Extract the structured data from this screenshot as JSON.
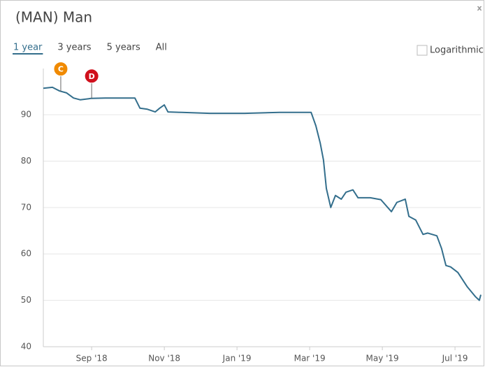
{
  "chart_data": {
    "type": "line",
    "title": "(MAN) Man",
    "close": "x",
    "ranges": [
      "1 year",
      "3 years",
      "5 years",
      "All"
    ],
    "selected_range": 0,
    "log_label": "Logarithmic",
    "log_scale": false,
    "grid": true,
    "color": "#336e8c",
    "xlim": [
      7.67,
      19.71
    ],
    "xticks": [
      {
        "value": 9,
        "label": "Sep '18"
      },
      {
        "value": 11,
        "label": "Nov '18"
      },
      {
        "value": 13,
        "label": "Jan '19"
      },
      {
        "value": 15,
        "label": "Mar '19"
      },
      {
        "value": 17,
        "label": "May '19"
      },
      {
        "value": 19,
        "label": "Jul '19"
      }
    ],
    "ylim": [
      40,
      99.2
    ],
    "yticks": [
      40,
      50,
      60,
      70,
      80,
      90
    ],
    "x": [
      7.67,
      7.92,
      8.12,
      8.31,
      8.5,
      8.69,
      8.98,
      9.37,
      9.75,
      10.19,
      10.33,
      10.52,
      10.75,
      10.87,
      11.0,
      11.1,
      11.48,
      12.25,
      13.21,
      14.17,
      15.04,
      15.17,
      15.29,
      15.38,
      15.46,
      15.58,
      15.71,
      15.87,
      16.0,
      16.19,
      16.33,
      16.67,
      16.96,
      17.25,
      17.4,
      17.63,
      17.73,
      17.92,
      18.12,
      18.25,
      18.5,
      18.63,
      18.75,
      18.88,
      19.08,
      19.33,
      19.56,
      19.67,
      19.71
    ],
    "values": [
      95.7,
      95.9,
      95.1,
      94.7,
      93.6,
      93.2,
      93.5,
      93.6,
      93.6,
      93.6,
      91.4,
      91.2,
      90.6,
      91.4,
      92.1,
      90.6,
      90.5,
      90.3,
      90.3,
      90.5,
      90.5,
      87.6,
      83.9,
      80.2,
      74.1,
      70.0,
      72.6,
      71.8,
      73.3,
      73.8,
      72.1,
      72.1,
      71.7,
      69.1,
      71.1,
      71.8,
      68.1,
      67.3,
      64.2,
      64.5,
      63.9,
      61.2,
      57.5,
      57.2,
      56.0,
      53.0,
      50.8,
      50.0,
      51.2
    ],
    "annotations": [
      {
        "label": "C",
        "x": 8.15,
        "color": "#f08a00"
      },
      {
        "label": "D",
        "x": 9.0,
        "color": "#d0101c"
      }
    ]
  }
}
